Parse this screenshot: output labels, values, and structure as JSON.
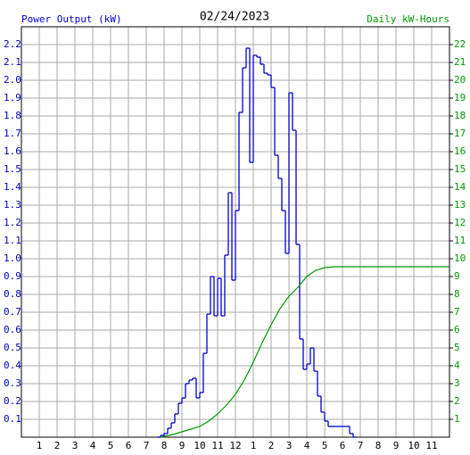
{
  "chart_data": {
    "type": "line",
    "title": "02/24/2023",
    "y_label": "Power Output (kW)",
    "y2_label": "Daily kW-Hours",
    "xlim": [
      0,
      24
    ],
    "xticks": [
      {
        "value": 1,
        "label": "1"
      },
      {
        "value": 2,
        "label": "2"
      },
      {
        "value": 3,
        "label": "3"
      },
      {
        "value": 4,
        "label": "4"
      },
      {
        "value": 5,
        "label": "5"
      },
      {
        "value": 6,
        "label": "6"
      },
      {
        "value": 7,
        "label": "7"
      },
      {
        "value": 8,
        "label": "8"
      },
      {
        "value": 9,
        "label": "9"
      },
      {
        "value": 10,
        "label": "10"
      },
      {
        "value": 11,
        "label": "11"
      },
      {
        "value": 12,
        "label": "12"
      },
      {
        "value": 13,
        "label": "1"
      },
      {
        "value": 14,
        "label": "2"
      },
      {
        "value": 15,
        "label": "3"
      },
      {
        "value": 16,
        "label": "4"
      },
      {
        "value": 17,
        "label": "5"
      },
      {
        "value": 18,
        "label": "6"
      },
      {
        "value": 19,
        "label": "7"
      },
      {
        "value": 20,
        "label": "8"
      },
      {
        "value": 21,
        "label": "9"
      },
      {
        "value": 22,
        "label": "10"
      },
      {
        "value": 23,
        "label": "11"
      }
    ],
    "ylim": [
      0,
      2.3
    ],
    "yticks": [
      0.1,
      0.2,
      0.3,
      0.4,
      0.5,
      0.6,
      0.7,
      0.8,
      0.9,
      {
        "value": 1,
        "label": "1.0"
      },
      1.1,
      1.2,
      1.3,
      1.4,
      1.5,
      1.6,
      1.7,
      1.8,
      1.9,
      {
        "value": 2,
        "label": "2.0"
      },
      2.1,
      2.2
    ],
    "y2lim": [
      0,
      23
    ],
    "y2ticks": [
      1,
      2,
      3,
      4,
      5,
      6,
      7,
      8,
      9,
      10,
      11,
      12,
      13,
      14,
      15,
      16,
      17,
      18,
      19,
      20,
      21,
      22
    ],
    "grid": true,
    "series": [
      {
        "name": "Power Output (kW)",
        "color": "#0000cc",
        "step": true,
        "x": [
          7.6,
          7.8,
          8.0,
          8.2,
          8.4,
          8.6,
          8.8,
          9.0,
          9.2,
          9.4,
          9.6,
          9.8,
          10.0,
          10.2,
          10.4,
          10.6,
          10.8,
          11.0,
          11.2,
          11.4,
          11.6,
          11.8,
          12.0,
          12.2,
          12.4,
          12.6,
          12.8,
          13.0,
          13.2,
          13.4,
          13.6,
          13.8,
          14.0,
          14.2,
          14.4,
          14.6,
          14.8,
          15.0,
          15.2,
          15.4,
          15.6,
          15.8,
          16.0,
          16.2,
          16.4,
          16.6,
          16.8,
          17.0,
          17.2,
          17.4,
          17.6,
          17.8,
          18.0,
          18.2,
          18.4,
          18.6
        ],
        "values": [
          0,
          0.01,
          0.02,
          0.05,
          0.08,
          0.13,
          0.19,
          0.22,
          0.3,
          0.32,
          0.33,
          0.22,
          0.25,
          0.47,
          0.69,
          0.9,
          0.68,
          0.89,
          0.68,
          1.02,
          1.37,
          0.88,
          1.27,
          1.82,
          2.07,
          2.18,
          1.54,
          2.14,
          2.13,
          2.09,
          2.04,
          2.03,
          1.96,
          1.58,
          1.45,
          1.27,
          1.03,
          1.93,
          1.72,
          1.08,
          0.55,
          0.38,
          0.41,
          0.5,
          0.37,
          0.23,
          0.14,
          0.09,
          0.06,
          0.06,
          0.06,
          0.06,
          0.06,
          0.06,
          0.02,
          0
        ]
      },
      {
        "name": "Daily kW-Hours",
        "color": "#009900",
        "axis": "y2",
        "x": [
          7.8,
          8,
          8.5,
          9,
          9.5,
          10,
          10.5,
          11,
          11.5,
          12,
          12.5,
          13,
          13.5,
          14,
          14.5,
          15,
          15.5,
          16,
          16.5,
          17,
          17.5,
          18,
          24
        ],
        "values": [
          0,
          0.05,
          0.15,
          0.3,
          0.45,
          0.6,
          0.9,
          1.3,
          1.8,
          2.4,
          3.2,
          4.2,
          5.3,
          6.3,
          7.2,
          7.9,
          8.4,
          9.0,
          9.35,
          9.5,
          9.55,
          9.55,
          9.55
        ]
      }
    ]
  }
}
